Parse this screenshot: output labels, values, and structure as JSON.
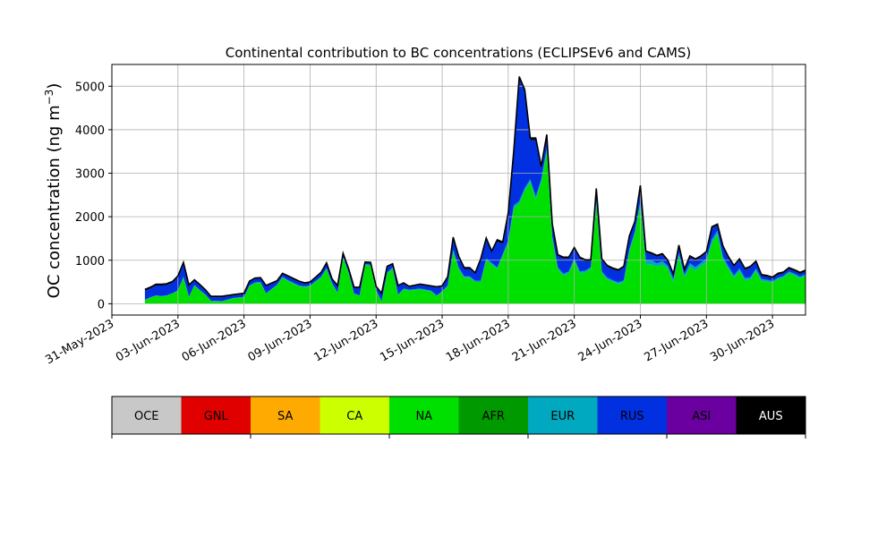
{
  "chart_data": {
    "type": "area",
    "stacked": true,
    "title": "Continental contribution to BC concentrations (ECLIPSEv6 and CAMS)",
    "xlabel": "",
    "ylabel": "OC concentration (ng m",
    "ylabel_superscript": "−3",
    "ylabel_suffix": ")",
    "ylim": [
      -260,
      5500
    ],
    "xlim": [
      "2023-05-31T00:00",
      "2023-07-01T12:00"
    ],
    "yticks": [
      0,
      1000,
      2000,
      3000,
      4000,
      5000
    ],
    "ytick_labels": [
      "0",
      "1000",
      "2000",
      "3000",
      "4000",
      "5000"
    ],
    "xticks": [
      "2023-05-31",
      "2023-06-03",
      "2023-06-06",
      "2023-06-09",
      "2023-06-12",
      "2023-06-15",
      "2023-06-18",
      "2023-06-21",
      "2023-06-24",
      "2023-06-27",
      "2023-06-30"
    ],
    "xtick_labels": [
      "31-May-2023",
      "03-Jun-2023",
      "06-Jun-2023",
      "09-Jun-2023",
      "12-Jun-2023",
      "15-Jun-2023",
      "18-Jun-2023",
      "21-Jun-2023",
      "24-Jun-2023",
      "27-Jun-2023",
      "30-Jun-2023"
    ],
    "grid": true,
    "x": [
      "2023-06-01T12:00",
      "2023-06-01T18:00",
      "2023-06-02T00:00",
      "2023-06-02T06:00",
      "2023-06-02T12:00",
      "2023-06-02T14:00",
      "2023-06-02T18:00",
      "2023-06-03T00:00",
      "2023-06-03T06:00",
      "2023-06-03T12:00",
      "2023-06-03T18:00",
      "2023-06-04T00:00",
      "2023-06-04T06:00",
      "2023-06-04T12:00",
      "2023-06-05T00:00",
      "2023-06-05T12:00",
      "2023-06-06T00:00",
      "2023-06-06T06:00",
      "2023-06-06T12:00",
      "2023-06-06T18:00",
      "2023-06-07T00:00",
      "2023-06-07T12:00",
      "2023-06-07T18:00",
      "2023-06-08T00:00",
      "2023-06-08T12:00",
      "2023-06-08T18:00",
      "2023-06-09T00:00",
      "2023-06-09T12:00",
      "2023-06-09T18:00",
      "2023-06-10T00:00",
      "2023-06-10T06:00",
      "2023-06-10T12:00",
      "2023-06-10T18:00",
      "2023-06-11T00:00",
      "2023-06-11T06:00",
      "2023-06-11T12:00",
      "2023-06-11T18:00",
      "2023-06-12T00:00",
      "2023-06-12T06:00",
      "2023-06-12T12:00",
      "2023-06-12T18:00",
      "2023-06-13T00:00",
      "2023-06-13T06:00",
      "2023-06-13T12:00",
      "2023-06-14T00:00",
      "2023-06-14T12:00",
      "2023-06-14T18:00",
      "2023-06-15T00:00",
      "2023-06-15T06:00",
      "2023-06-15T12:00",
      "2023-06-15T18:00",
      "2023-06-16T00:00",
      "2023-06-16T06:00",
      "2023-06-16T12:00",
      "2023-06-16T18:00",
      "2023-06-17T00:00",
      "2023-06-17T06:00",
      "2023-06-17T12:00",
      "2023-06-17T18:00",
      "2023-06-18T00:00",
      "2023-06-18T06:00",
      "2023-06-18T12:00",
      "2023-06-18T18:00",
      "2023-06-19T00:00",
      "2023-06-19T06:00",
      "2023-06-19T12:00",
      "2023-06-19T18:00",
      "2023-06-20T00:00",
      "2023-06-20T06:00",
      "2023-06-20T12:00",
      "2023-06-20T18:00",
      "2023-06-21T00:00",
      "2023-06-21T06:00",
      "2023-06-21T12:00",
      "2023-06-21T18:00",
      "2023-06-22T00:00",
      "2023-06-22T06:00",
      "2023-06-22T12:00",
      "2023-06-22T18:00",
      "2023-06-23T00:00",
      "2023-06-23T06:00",
      "2023-06-23T12:00",
      "2023-06-23T18:00",
      "2023-06-24T00:00",
      "2023-06-24T06:00",
      "2023-06-24T12:00",
      "2023-06-24T18:00",
      "2023-06-25T00:00",
      "2023-06-25T06:00",
      "2023-06-25T12:00",
      "2023-06-25T18:00",
      "2023-06-26T00:00",
      "2023-06-26T06:00",
      "2023-06-26T12:00",
      "2023-06-26T18:00",
      "2023-06-27T00:00",
      "2023-06-27T06:00",
      "2023-06-27T12:00",
      "2023-06-27T18:00",
      "2023-06-28T00:00",
      "2023-06-28T06:00",
      "2023-06-28T12:00",
      "2023-06-28T18:00",
      "2023-06-29T00:00",
      "2023-06-29T06:00",
      "2023-06-29T12:00",
      "2023-06-29T18:00",
      "2023-06-30T00:00",
      "2023-06-30T06:00",
      "2023-06-30T12:00",
      "2023-06-30T18:00",
      "2023-07-01T00:00",
      "2023-07-01T06:00",
      "2023-07-01T12:00"
    ],
    "series": [
      {
        "name": "NA",
        "color": "#00e000",
        "values": [
          80,
          140,
          180,
          170,
          180,
          200,
          230,
          300,
          600,
          150,
          420,
          300,
          200,
          60,
          50,
          120,
          150,
          400,
          470,
          480,
          230,
          420,
          600,
          520,
          400,
          380,
          400,
          600,
          800,
          450,
          250,
          1050,
          700,
          230,
          180,
          880,
          870,
          300,
          50,
          700,
          800,
          200,
          330,
          300,
          330,
          280,
          180,
          270,
          400,
          1200,
          800,
          600,
          600,
          500,
          500,
          1000,
          900,
          800,
          1100,
          1400,
          2200,
          2300,
          2600,
          2800,
          2400,
          2800,
          3500,
          1500,
          800,
          650,
          700,
          1000,
          700,
          720,
          800,
          2300,
          700,
          560,
          500,
          450,
          500,
          1200,
          1600,
          2300,
          900,
          900,
          850,
          900,
          800,
          500,
          1100,
          600,
          850,
          760,
          860,
          950,
          1400,
          1600,
          1000,
          800,
          600,
          750,
          540,
          560,
          750,
          520,
          510,
          480,
          560,
          600,
          700,
          650,
          580,
          640
        ]
      },
      {
        "name": "EUR",
        "color": "#00a8c0",
        "values": [
          10,
          10,
          10,
          10,
          10,
          10,
          10,
          10,
          20,
          10,
          10,
          10,
          10,
          10,
          10,
          10,
          10,
          20,
          20,
          20,
          10,
          20,
          20,
          20,
          20,
          20,
          20,
          20,
          20,
          20,
          10,
          30,
          20,
          10,
          10,
          30,
          30,
          10,
          10,
          20,
          30,
          10,
          20,
          20,
          20,
          20,
          10,
          20,
          20,
          40,
          30,
          30,
          30,
          30,
          30,
          40,
          40,
          30,
          40,
          50,
          60,
          60,
          60,
          60,
          60,
          60,
          80,
          50,
          40,
          40,
          40,
          40,
          40,
          40,
          40,
          60,
          40,
          40,
          40,
          40,
          40,
          50,
          60,
          60,
          100,
          100,
          80,
          80,
          70,
          60,
          70,
          60,
          80,
          80,
          80,
          80,
          80,
          80,
          80,
          60,
          50,
          60,
          50,
          50,
          60,
          50,
          40,
          40,
          40,
          40,
          40,
          40,
          40,
          40
        ]
      },
      {
        "name": "RUS",
        "color": "#0030e0",
        "values": [
          210,
          200,
          230,
          240,
          240,
          240,
          240,
          300,
          300,
          240,
          100,
          110,
          90,
          80,
          90,
          60,
          60,
          80,
          80,
          80,
          160,
          70,
          60,
          80,
          80,
          60,
          60,
          80,
          100,
          80,
          140,
          60,
          70,
          120,
          170,
          30,
          30,
          70,
          160,
          120,
          70,
          190,
          110,
          60,
          80,
          90,
          180,
          100,
          180,
          260,
          230,
          170,
          170,
          150,
          470,
          440,
          240,
          600,
          240,
          600,
          1200,
          2800,
          2200,
          900,
          1300,
          250,
          250,
          250,
          260,
          350,
          300,
          220,
          300,
          220,
          140,
          250,
          260,
          250,
          250,
          260,
          290,
          280,
          200,
          320,
          180,
          140,
          150,
          140,
          100,
          90,
          150,
          100,
          140,
          160,
          130,
          140,
          260,
          120,
          220,
          190,
          200,
          190,
          190,
          220,
          140,
          70,
          70,
          60,
          70,
          60,
          60,
          60,
          70,
          60
        ]
      },
      {
        "name": "AUS",
        "color": "#000000",
        "values": [
          30,
          30,
          30,
          30,
          30,
          30,
          30,
          30,
          30,
          30,
          20,
          20,
          20,
          20,
          20,
          20,
          20,
          20,
          20,
          20,
          20,
          20,
          20,
          20,
          20,
          20,
          20,
          20,
          20,
          20,
          20,
          20,
          20,
          20,
          20,
          20,
          20,
          20,
          20,
          20,
          20,
          20,
          20,
          20,
          20,
          20,
          20,
          20,
          20,
          30,
          30,
          30,
          30,
          30,
          30,
          30,
          30,
          40,
          40,
          40,
          50,
          60,
          60,
          50,
          50,
          50,
          60,
          40,
          30,
          30,
          30,
          30,
          30,
          30,
          30,
          40,
          30,
          30,
          30,
          30,
          30,
          30,
          30,
          40,
          30,
          30,
          30,
          30,
          30,
          30,
          30,
          30,
          30,
          30,
          30,
          30,
          30,
          30,
          30,
          30,
          30,
          30,
          30,
          30,
          30,
          30,
          30,
          30,
          30,
          30,
          30,
          30,
          30,
          30
        ]
      }
    ]
  },
  "legend": {
    "items": [
      {
        "label": "OCE",
        "color": "#c8c8c8"
      },
      {
        "label": "GNL",
        "color": "#e00000"
      },
      {
        "label": "SA",
        "color": "#ffaa00"
      },
      {
        "label": "CA",
        "color": "#ccff00"
      },
      {
        "label": "NA",
        "color": "#00e000"
      },
      {
        "label": "AFR",
        "color": "#009a00"
      },
      {
        "label": "EUR",
        "color": "#00a8c0"
      },
      {
        "label": "RUS",
        "color": "#0030e0"
      },
      {
        "label": "ASI",
        "color": "#6a00a0"
      },
      {
        "label": "AUS",
        "color": "#000000"
      }
    ]
  }
}
